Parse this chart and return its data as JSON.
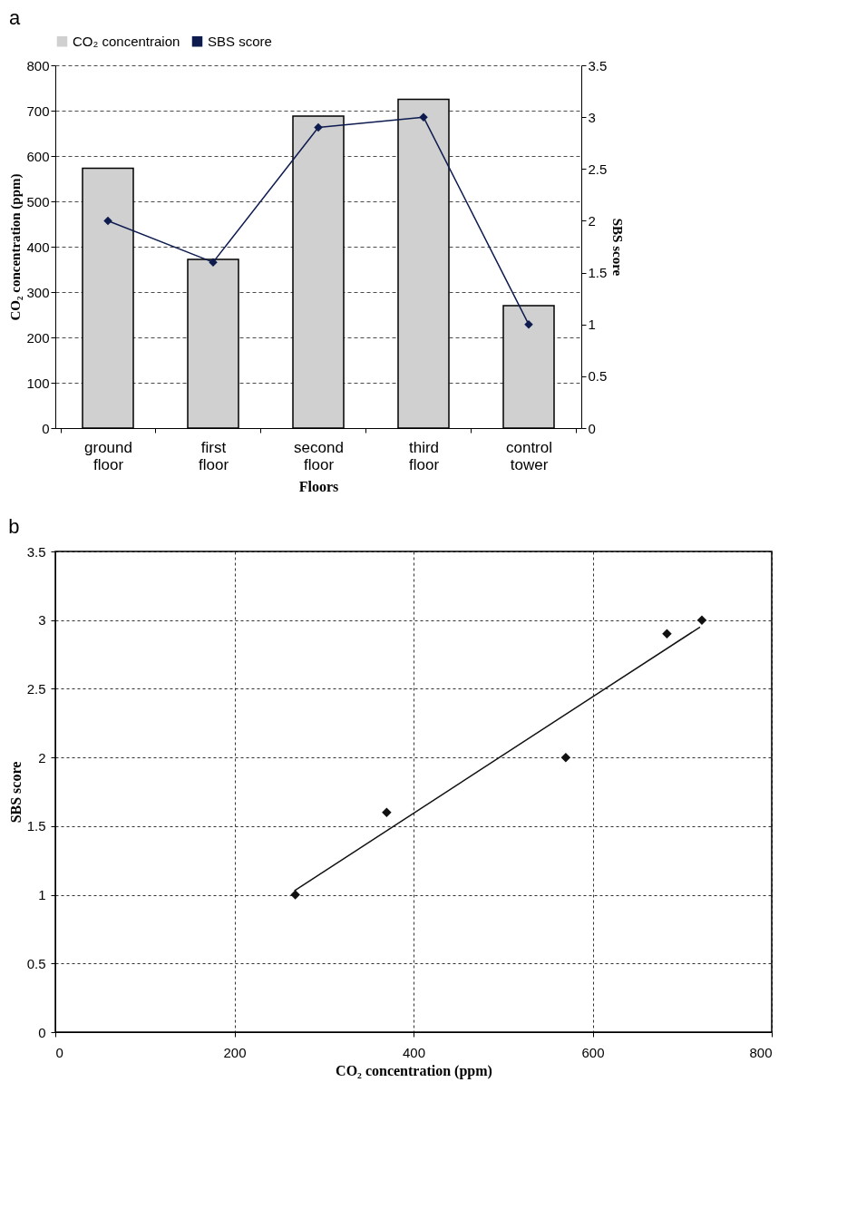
{
  "chart_data": [
    {
      "type": "bar",
      "title": "a",
      "xlabel": "Floors",
      "ylabel": "CO₂ concentration (ppm)",
      "y2label": "SBS score",
      "categories": [
        "ground floor",
        "first floor",
        "second floor",
        "third floor",
        "control tower"
      ],
      "series": [
        {
          "name": "CO₂ concentraion",
          "color": "#d0d0d0",
          "values": [
            573,
            372,
            688,
            725,
            270
          ]
        },
        {
          "name": "SBS score",
          "type": "line",
          "axis": "y2",
          "color": "#0d1b4f",
          "values": [
            2.0,
            1.6,
            2.9,
            3.0,
            1.0
          ]
        }
      ],
      "ylim": [
        0,
        800
      ],
      "yticks": [
        0,
        100,
        200,
        300,
        400,
        500,
        600,
        700,
        800
      ],
      "y2lim": [
        0,
        3.5
      ],
      "y2ticks": [
        0,
        0.5,
        1,
        1.5,
        2,
        2.5,
        3,
        3.5
      ],
      "grid": "y",
      "legend": "top",
      "marker": "diamond"
    },
    {
      "type": "scatter",
      "title": "b",
      "xlabel": "CO₂ concentration (ppm)",
      "ylabel": "SBS score",
      "series": [
        {
          "color": "#111111",
          "marker": "diamond",
          "x": [
            268,
            370,
            570,
            683,
            722
          ],
          "values": [
            1.0,
            1.6,
            2.0,
            2.9,
            3.0
          ]
        },
        {
          "type": "line",
          "color": "#111111",
          "marker": "none",
          "x": [
            267,
            720
          ],
          "values": [
            1.03,
            2.95
          ]
        }
      ],
      "xlim": [
        0,
        800
      ],
      "xticks": [
        0,
        200,
        400,
        600,
        800
      ],
      "ylim": [
        0,
        3.5
      ],
      "yticks": [
        0,
        0.5,
        1,
        1.5,
        2,
        2.5,
        3,
        3.5
      ],
      "grid": true
    }
  ]
}
